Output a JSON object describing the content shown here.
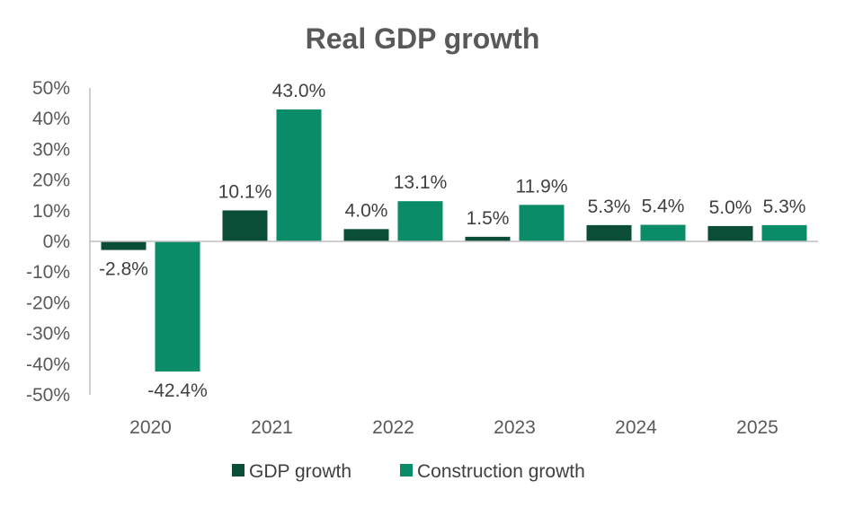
{
  "chart_data": {
    "type": "bar",
    "title": "Real GDP growth",
    "xlabel": "",
    "ylabel": "",
    "categories": [
      "2020",
      "2021",
      "2022",
      "2023",
      "2024",
      "2025"
    ],
    "series": [
      {
        "name": "GDP growth",
        "values": [
          -2.8,
          10.1,
          4.0,
          1.5,
          5.3,
          5.0
        ],
        "color": "#0b4d36"
      },
      {
        "name": "Construction growth",
        "values": [
          -42.4,
          43.0,
          13.1,
          11.9,
          5.4,
          5.3
        ],
        "color": "#0a8c68"
      }
    ],
    "data_labels": [
      [
        "-2.8%",
        "10.1%",
        "4.0%",
        "1.5%",
        "5.3%",
        "5.0%"
      ],
      [
        "-42.4%",
        "43.0%",
        "13.1%",
        "11.9%",
        "5.4%",
        "5.3%"
      ]
    ],
    "ylim": [
      -50,
      50
    ],
    "yticks": [
      50,
      40,
      30,
      20,
      10,
      0,
      -10,
      -20,
      -30,
      -40,
      -50
    ],
    "ytick_labels": [
      "50%",
      "40%",
      "30%",
      "20%",
      "10%",
      "0%",
      "-10%",
      "-20%",
      "-30%",
      "-40%",
      "-50%"
    ],
    "grid": false,
    "legend_position": "bottom"
  }
}
